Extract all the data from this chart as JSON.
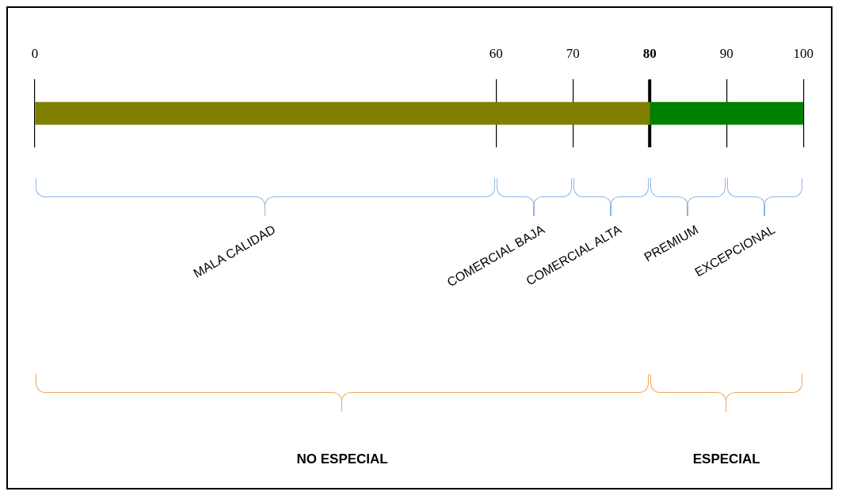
{
  "chart_data": {
    "type": "bar",
    "orientation": "horizontal",
    "stacked": true,
    "categories": [
      null
    ],
    "series": [
      {
        "color": "#808000",
        "values": [
          80
        ]
      },
      {
        "color": "#008000",
        "values": [
          20
        ]
      }
    ],
    "xlim": [
      0,
      100
    ],
    "xticks": [
      0,
      60,
      70,
      80,
      90,
      100
    ],
    "grid": "x",
    "legend": false,
    "ref_lines": [
      {
        "axis": "x",
        "value": 80,
        "color": "#000000"
      }
    ],
    "annotations": [
      "MALA CALIDAD",
      "COMERCIAL BAJA",
      "COMERCIAL ALTA",
      "PREMIUM",
      "EXCEPCIONAL",
      "NO ESPECIAL",
      "ESPECIAL"
    ]
  }
}
